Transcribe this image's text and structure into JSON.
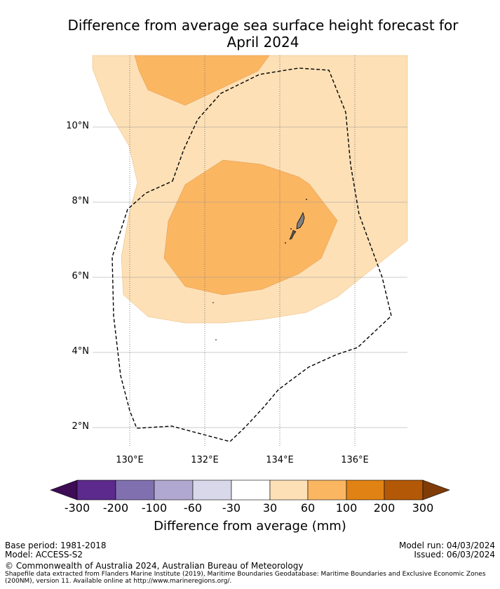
{
  "title_line1": "Difference from average sea surface height forecast for",
  "title_line2": "April 2024",
  "map": {
    "lat_labels": [
      "10°N",
      "8°N",
      "6°N",
      "4°N",
      "2°N"
    ],
    "lon_labels": [
      "130°E",
      "132°E",
      "134°E",
      "136°E"
    ],
    "colors": {
      "light_orange": "#fde0b6",
      "medium_orange": "#fbb662",
      "land": "#808080",
      "eez_boundary": "#000000",
      "grid": "#999999"
    }
  },
  "colorbar": {
    "ticks": [
      "-300",
      "-200",
      "-100",
      "-60",
      "-30",
      "30",
      "60",
      "100",
      "200",
      "300"
    ],
    "colors": [
      "#3d0c54",
      "#5b2a8c",
      "#8070b0",
      "#b0a8d0",
      "#d8d8ea",
      "#ffffff",
      "#fde0b6",
      "#fbb662",
      "#e08214",
      "#b35806",
      "#7f3b08"
    ],
    "label": "Difference from average (mm)"
  },
  "footer": {
    "base_period": "Base period: 1981-2018",
    "model": "Model: ACCESS-S2",
    "model_run": "Model run: 04/03/2024",
    "issued": "Issued: 06/03/2024",
    "copyright": "© Commonwealth of Australia 2024, Australian Bureau of Meteorology",
    "shapefile_line1": "Shapefile data extracted from Flanders Marine Institute (2019), Maritime Boundaries Geodatabase: Maritime Boundaries and Exclusive Economic Zones",
    "shapefile_line2": "(200NM), version 11. Available online at http://www.marineregions.org/."
  }
}
